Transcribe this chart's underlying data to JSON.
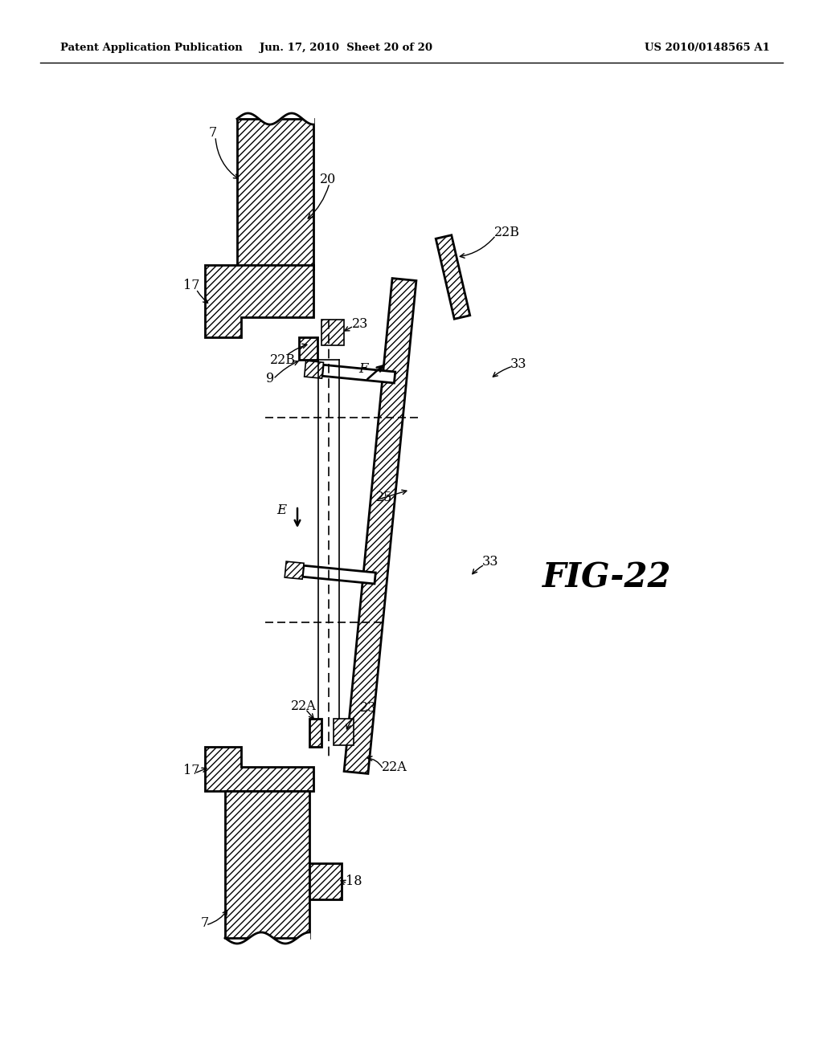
{
  "header_left": "Patent Application Publication",
  "header_mid": "Jun. 17, 2010  Sheet 20 of 20",
  "header_right": "US 2010/0148565 A1",
  "bg_color": "#ffffff",
  "line_color": "#000000",
  "fig_label": "FIG-22"
}
